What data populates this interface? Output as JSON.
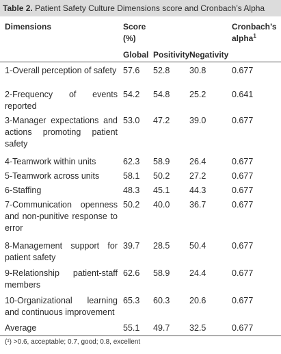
{
  "caption": {
    "label": "Table 2.",
    "text": " Patient Safety Culture Dimensions score and Cronbach’s Alpha"
  },
  "header": {
    "dimensions": "Dimensions",
    "score": "Score",
    "percent": "(%)",
    "cronbach": "Cronbach’s",
    "alpha": "alpha",
    "alpha_sup": "1",
    "global": "Global",
    "positivity": "Positivity",
    "negativity": "Negativity"
  },
  "rows": [
    {
      "dimension": "1-Overall perception of safety",
      "global": "57.6",
      "positivity": "52.8",
      "negativity": "30.8",
      "alpha": "0.677"
    },
    {
      "dimension": "2-Frequency of events reported",
      "global": "54.2",
      "positivity": "54.8",
      "negativity": "25.2",
      "alpha": "0.641"
    },
    {
      "dimension": "3-Manager expectations and actions promoting patient safety",
      "global": "53.0",
      "positivity": "47.2",
      "negativity": "39.0",
      "alpha": "0.677"
    },
    {
      "dimension": "4-Teamwork within units",
      "global": "62.3",
      "positivity": "58.9",
      "negativity": "26.4",
      "alpha": "0.677"
    },
    {
      "dimension": "5-Teamwork across units",
      "global": "58.1",
      "positivity": "50.2",
      "negativity": "27.2",
      "alpha": "0.677"
    },
    {
      "dimension": "6-Staffing",
      "global": "48.3",
      "positivity": "45.1",
      "negativity": "44.3",
      "alpha": "0.677"
    },
    {
      "dimension": "7-Communication openness and non-punitive response to error",
      "global": "50.2",
      "positivity": "40.0",
      "negativity": "36.7",
      "alpha": "0.677"
    },
    {
      "dimension": "8-Management support for patient safety",
      "global": "39.7",
      "positivity": "28.5",
      "negativity": "50.4",
      "alpha": "0.677"
    },
    {
      "dimension": "9-Relationship patient-staff members",
      "global": "62.6",
      "positivity": "58.9",
      "negativity": "24.4",
      "alpha": "0.677"
    },
    {
      "dimension": "10-Organizational learning and continuous improvement",
      "global": "65.3",
      "positivity": "60.3",
      "negativity": "20.6",
      "alpha": "0.677"
    },
    {
      "dimension": "Average",
      "global": "55.1",
      "positivity": "49.7",
      "negativity": "32.5",
      "alpha": "0.677"
    }
  ],
  "footnote": "(¹) >0.6, acceptable; 0.7, good; 0.8, excellent"
}
